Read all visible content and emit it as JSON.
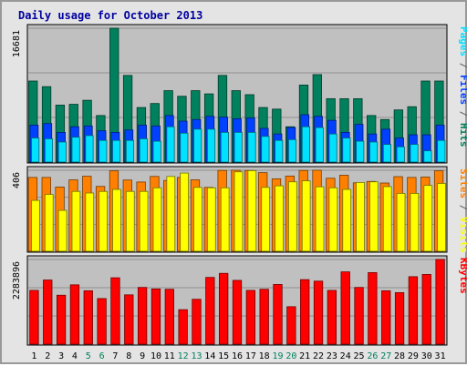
{
  "chart_data": {
    "title": "Daily usage for October 2013",
    "type": "bar",
    "categories": [
      "1",
      "2",
      "3",
      "4",
      "5",
      "6",
      "7",
      "8",
      "9",
      "10",
      "11",
      "12",
      "13",
      "14",
      "15",
      "16",
      "17",
      "18",
      "19",
      "20",
      "21",
      "22",
      "23",
      "24",
      "25",
      "26",
      "27",
      "28",
      "29",
      "30",
      "31"
    ],
    "weekend_days": [
      "5",
      "6",
      "12",
      "13",
      "19",
      "20",
      "26",
      "27"
    ],
    "colors": {
      "hits": "#00805c",
      "files": "#0040ff",
      "pages": "#00e0ff",
      "visits": "#ffff00",
      "sites": "#ff8000",
      "kbytes": "#ff0000",
      "weekday_label": "#000000",
      "weekend_label": "#00805c",
      "plot_bg": "#c0c0c0",
      "title": "#0000a0"
    },
    "panels": [
      {
        "id": "hits-files-pages",
        "ymax_label": "16681",
        "ymax": 16681,
        "side_labels": [
          {
            "text": "Pages",
            "color": "#00e0ff"
          },
          {
            "text": " / ",
            "color": "#606060"
          },
          {
            "text": "Files",
            "color": "#0040ff"
          },
          {
            "text": " / ",
            "color": "#606060"
          },
          {
            "text": "Hits",
            "color": "#00805c"
          }
        ],
        "series": [
          {
            "name": "Hits",
            "key": "hits",
            "values": [
              10100,
              9400,
              7100,
              7200,
              7700,
              5800,
              16681,
              10800,
              6800,
              7300,
              8900,
              8200,
              8900,
              8500,
              10800,
              8900,
              8400,
              6800,
              6600,
              4400,
              9600,
              10900,
              7900,
              7900,
              7900,
              5800,
              5300,
              6500,
              6900,
              10100,
              10100
            ]
          },
          {
            "name": "Files",
            "key": "files",
            "values": [
              4600,
              4800,
              3700,
              4400,
              4500,
              3900,
              3700,
              4000,
              4600,
              4500,
              5800,
              5100,
              5300,
              5700,
              5600,
              5400,
              5500,
              4200,
              3500,
              4300,
              5900,
              5700,
              5200,
              3700,
              4700,
              3500,
              4100,
              3000,
              3400,
              3400,
              4600
            ]
          },
          {
            "name": "Pages",
            "key": "pages",
            "values": [
              3000,
              2900,
              2500,
              3100,
              3300,
              2700,
              2700,
              2700,
              2900,
              2600,
              4400,
              3600,
              4100,
              4100,
              3700,
              3700,
              3700,
              3200,
              2700,
              2800,
              4400,
              4300,
              3500,
              3000,
              2600,
              2500,
              2200,
              1900,
              2200,
              1400,
              2700
            ]
          }
        ]
      },
      {
        "id": "sites-visits",
        "ymax_label": "406",
        "ymax": 406,
        "side_labels": [
          {
            "text": "Sites",
            "color": "#ff8000"
          },
          {
            "text": " / ",
            "color": "#606060"
          },
          {
            "text": "Visits",
            "color": "#ffff00"
          }
        ],
        "series": [
          {
            "name": "Sites",
            "key": "sites",
            "values": [
              370,
              370,
              322,
              358,
              376,
              325,
              403,
              357,
              347,
              375,
              355,
              370,
              358,
              320,
              405,
              406,
              405,
              394,
              363,
              377,
              405,
              406,
              366,
              381,
              343,
              350,
              342,
              374,
              370,
              372,
              403
            ]
          },
          {
            "name": "Visits",
            "key": "visits",
            "values": [
              255,
              285,
              205,
              300,
              292,
              300,
              310,
              300,
              300,
              318,
              375,
              392,
              320,
              318,
              318,
              398,
              404,
              320,
              328,
              348,
              353,
              323,
              318,
              310,
              345,
              348,
              324,
              290,
              290,
              330,
              340
            ]
          }
        ]
      },
      {
        "id": "kbytes",
        "ymax_label": "2283896",
        "ymax": 2283896,
        "side_labels": [
          {
            "text": "KBytes",
            "color": "#ff0000"
          }
        ],
        "series": [
          {
            "name": "KBytes",
            "key": "kbytes",
            "values": [
              1450000,
              1730000,
              1320000,
              1600000,
              1440000,
              1230000,
              1790000,
              1330000,
              1530000,
              1490000,
              1480000,
              930000,
              1210000,
              1800000,
              1910000,
              1720000,
              1450000,
              1480000,
              1610000,
              1010000,
              1740000,
              1700000,
              1450000,
              1950000,
              1530000,
              1930000,
              1440000,
              1390000,
              1820000,
              1880000,
              2283896
            ]
          }
        ]
      }
    ]
  }
}
